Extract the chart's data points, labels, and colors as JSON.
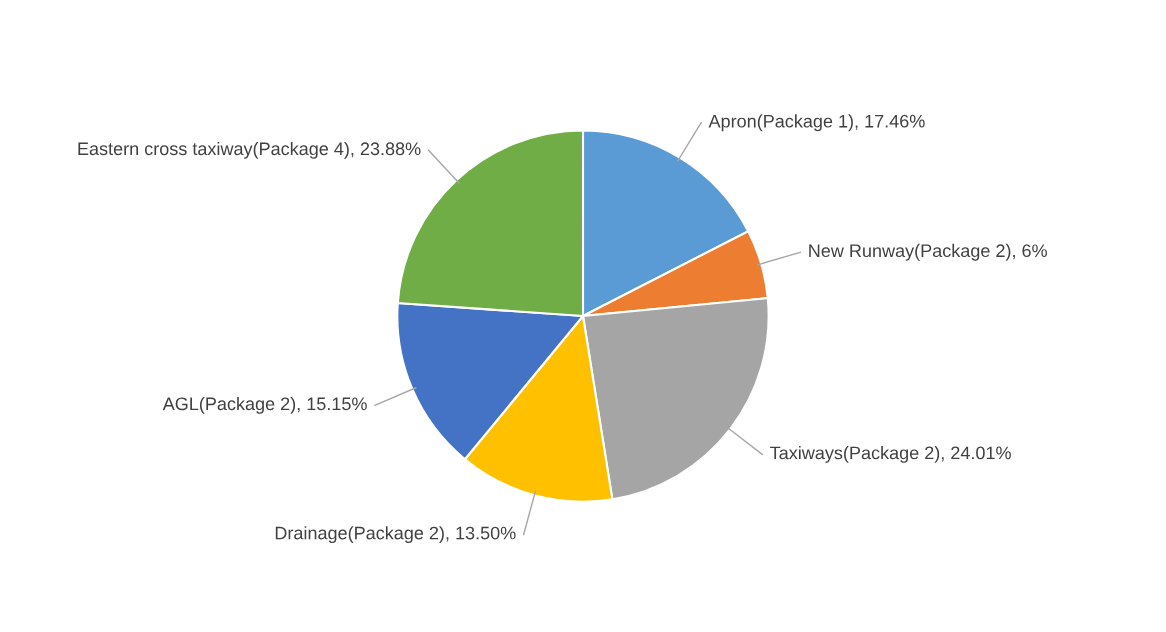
{
  "chart_data": {
    "type": "pie",
    "categories": [
      "Apron(Package 1)",
      "New Runway(Package 2)",
      "Taxiways(Package 2)",
      "Drainage(Package 2)",
      "AGL(Package 2)",
      "Eastern cross taxiway(Package 4)"
    ],
    "values": [
      17.46,
      6,
      24.01,
      13.5,
      15.15,
      23.88
    ],
    "value_labels": [
      "17.46%",
      "6%",
      "24.01%",
      "13.50%",
      "15.15%",
      "23.88%"
    ],
    "colors": [
      "#5b9bd5",
      "#ed7d31",
      "#a5a5a5",
      "#ffc000",
      "#4472c4",
      "#70ad47"
    ],
    "legend": false
  }
}
